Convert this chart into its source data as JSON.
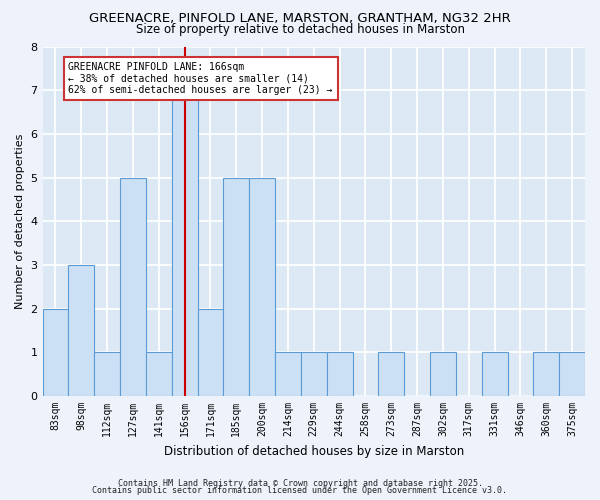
{
  "title1": "GREENACRE, PINFOLD LANE, MARSTON, GRANTHAM, NG32 2HR",
  "title2": "Size of property relative to detached houses in Marston",
  "xlabel": "Distribution of detached houses by size in Marston",
  "ylabel": "Number of detached properties",
  "categories": [
    "83sqm",
    "98sqm",
    "112sqm",
    "127sqm",
    "141sqm",
    "156sqm",
    "171sqm",
    "185sqm",
    "200sqm",
    "214sqm",
    "229sqm",
    "244sqm",
    "258sqm",
    "273sqm",
    "287sqm",
    "302sqm",
    "317sqm",
    "331sqm",
    "346sqm",
    "360sqm",
    "375sqm"
  ],
  "values": [
    2,
    3,
    1,
    5,
    1,
    7,
    2,
    5,
    5,
    1,
    1,
    1,
    0,
    1,
    0,
    1,
    0,
    1,
    0,
    1,
    1
  ],
  "bar_color": "#cce0f5",
  "bar_edge_color": "#5b9bd5",
  "red_line_x": 5,
  "annotation_text": "GREENACRE PINFOLD LANE: 166sqm\n← 38% of detached houses are smaller (14)\n62% of semi-detached houses are larger (23) →",
  "ylim": [
    0,
    8
  ],
  "yticks": [
    0,
    1,
    2,
    3,
    4,
    5,
    6,
    7,
    8
  ],
  "fig_bg_color": "#eef3fb",
  "plot_bg_color": "#dce9f5",
  "grid_color": "#ffffff",
  "footer1": "Contains HM Land Registry data © Crown copyright and database right 2025.",
  "footer2": "Contains public sector information licensed under the Open Government Licence v3.0."
}
